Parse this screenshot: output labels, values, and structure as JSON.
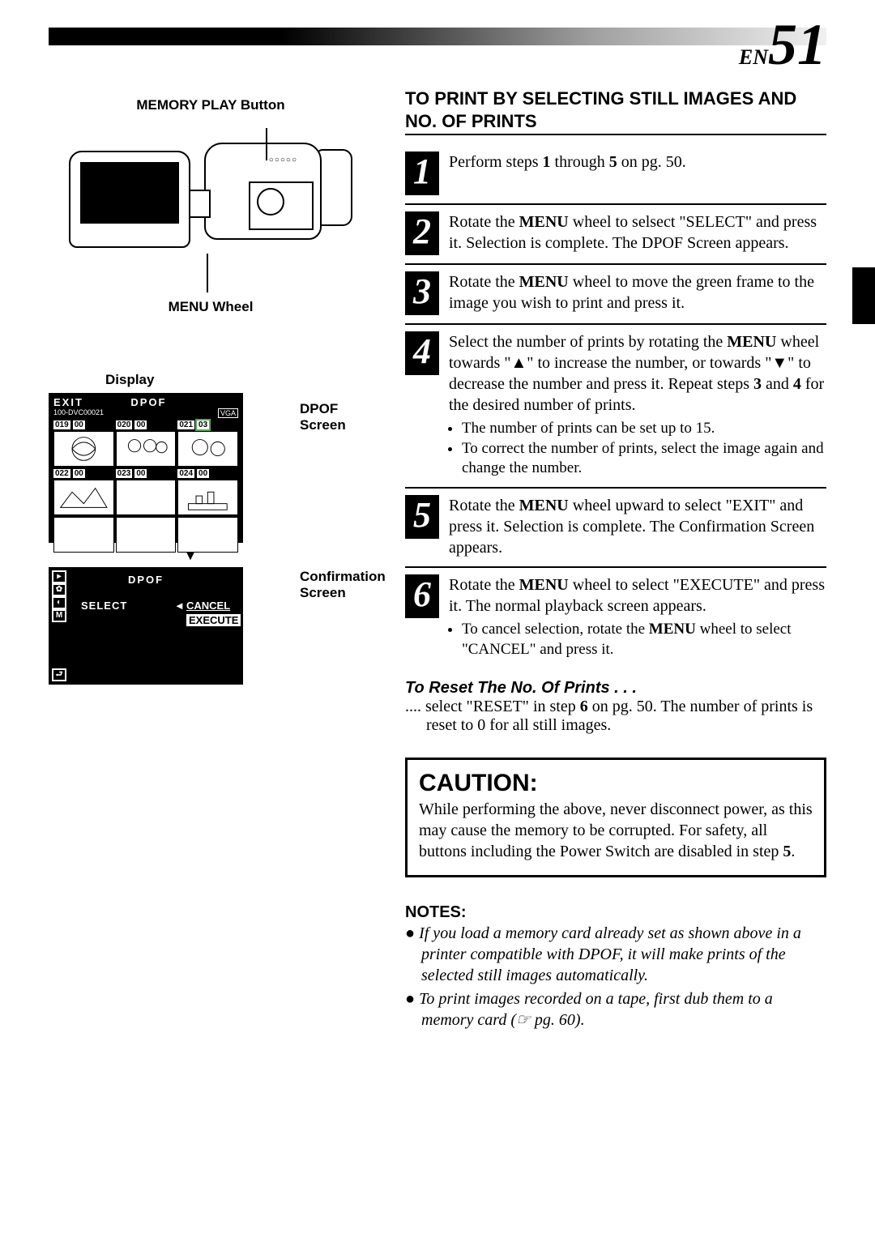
{
  "page": {
    "prefix": "EN",
    "number": "51"
  },
  "left": {
    "memory_play_label": "MEMORY PLAY Button",
    "menu_wheel_label": "MENU Wheel",
    "display_label": "Display",
    "dpof_screen_label": "DPOF Screen",
    "confirmation_screen_label": "Confirmation Screen",
    "dpof": {
      "exit": "EXIT",
      "title": "DPOF",
      "folder": "100-DVC00021",
      "mode": "VGA",
      "thumbs": [
        {
          "idx": "019",
          "cnt": "00"
        },
        {
          "idx": "020",
          "cnt": "00"
        },
        {
          "idx": "021",
          "cnt": "03",
          "highlight": true
        },
        {
          "idx": "022",
          "cnt": "00"
        },
        {
          "idx": "023",
          "cnt": "00"
        },
        {
          "idx": "024",
          "cnt": "00"
        }
      ]
    },
    "conf": {
      "title": "DPOF",
      "select": "SELECT",
      "arrow": "◄",
      "cancel": "CANCEL",
      "execute": "EXECUTE"
    }
  },
  "section_title": "TO PRINT BY SELECTING STILL IMAGES AND NO. OF PRINTS",
  "steps": [
    {
      "n": "1",
      "html": "Perform steps <b>1</b> through <b>5</b> on pg. 50."
    },
    {
      "n": "2",
      "html": "Rotate the <b>MENU</b> wheel to selsect \"SELECT\" and press it. Selection is complete. The DPOF Screen appears."
    },
    {
      "n": "3",
      "html": "Rotate the <b>MENU</b> wheel to move the green frame to the image you wish to print and press it."
    },
    {
      "n": "4",
      "html": "Select the number of prints by rotating the <b>MENU</b> wheel towards \"▲\" to increase the number, or towards \"▼\" to decrease the number and press it. Repeat steps <b>3</b> and <b>4</b> for the desired number of prints.<ul><li>The number of prints can be set up to 15.</li><li>To correct the number of prints, select the image again and change the number.</li></ul>"
    },
    {
      "n": "5",
      "html": "Rotate the <b>MENU</b> wheel upward to select \"EXIT\" and press it. Selection is complete. The Confirmation Screen appears."
    },
    {
      "n": "6",
      "html": "Rotate the <b>MENU</b> wheel to select \"EXECUTE\" and press it. The normal playback screen appears.<ul><li>To cancel selection, rotate the <b>MENU</b> wheel to select \"CANCEL\" and press it.</li></ul>"
    }
  ],
  "reset": {
    "title": "To Reset The No. Of Prints . . .",
    "body": ".... select \"RESET\" in step 6 on pg. 50. The number of prints is reset to 0 for all still images."
  },
  "caution": {
    "title": "CAUTION:",
    "body": "While performing the above, never disconnect power, as this may cause the memory to be corrupted. For safety, all buttons including the Power Switch are disabled in step 5."
  },
  "notes": {
    "title": "NOTES:",
    "items": [
      "If you load a memory card already set as shown above in a printer compatible with DPOF, it will make prints of the selected still images automatically.",
      "To print images recorded on a tape, first dub them to a memory card (☞ pg. 60)."
    ]
  }
}
